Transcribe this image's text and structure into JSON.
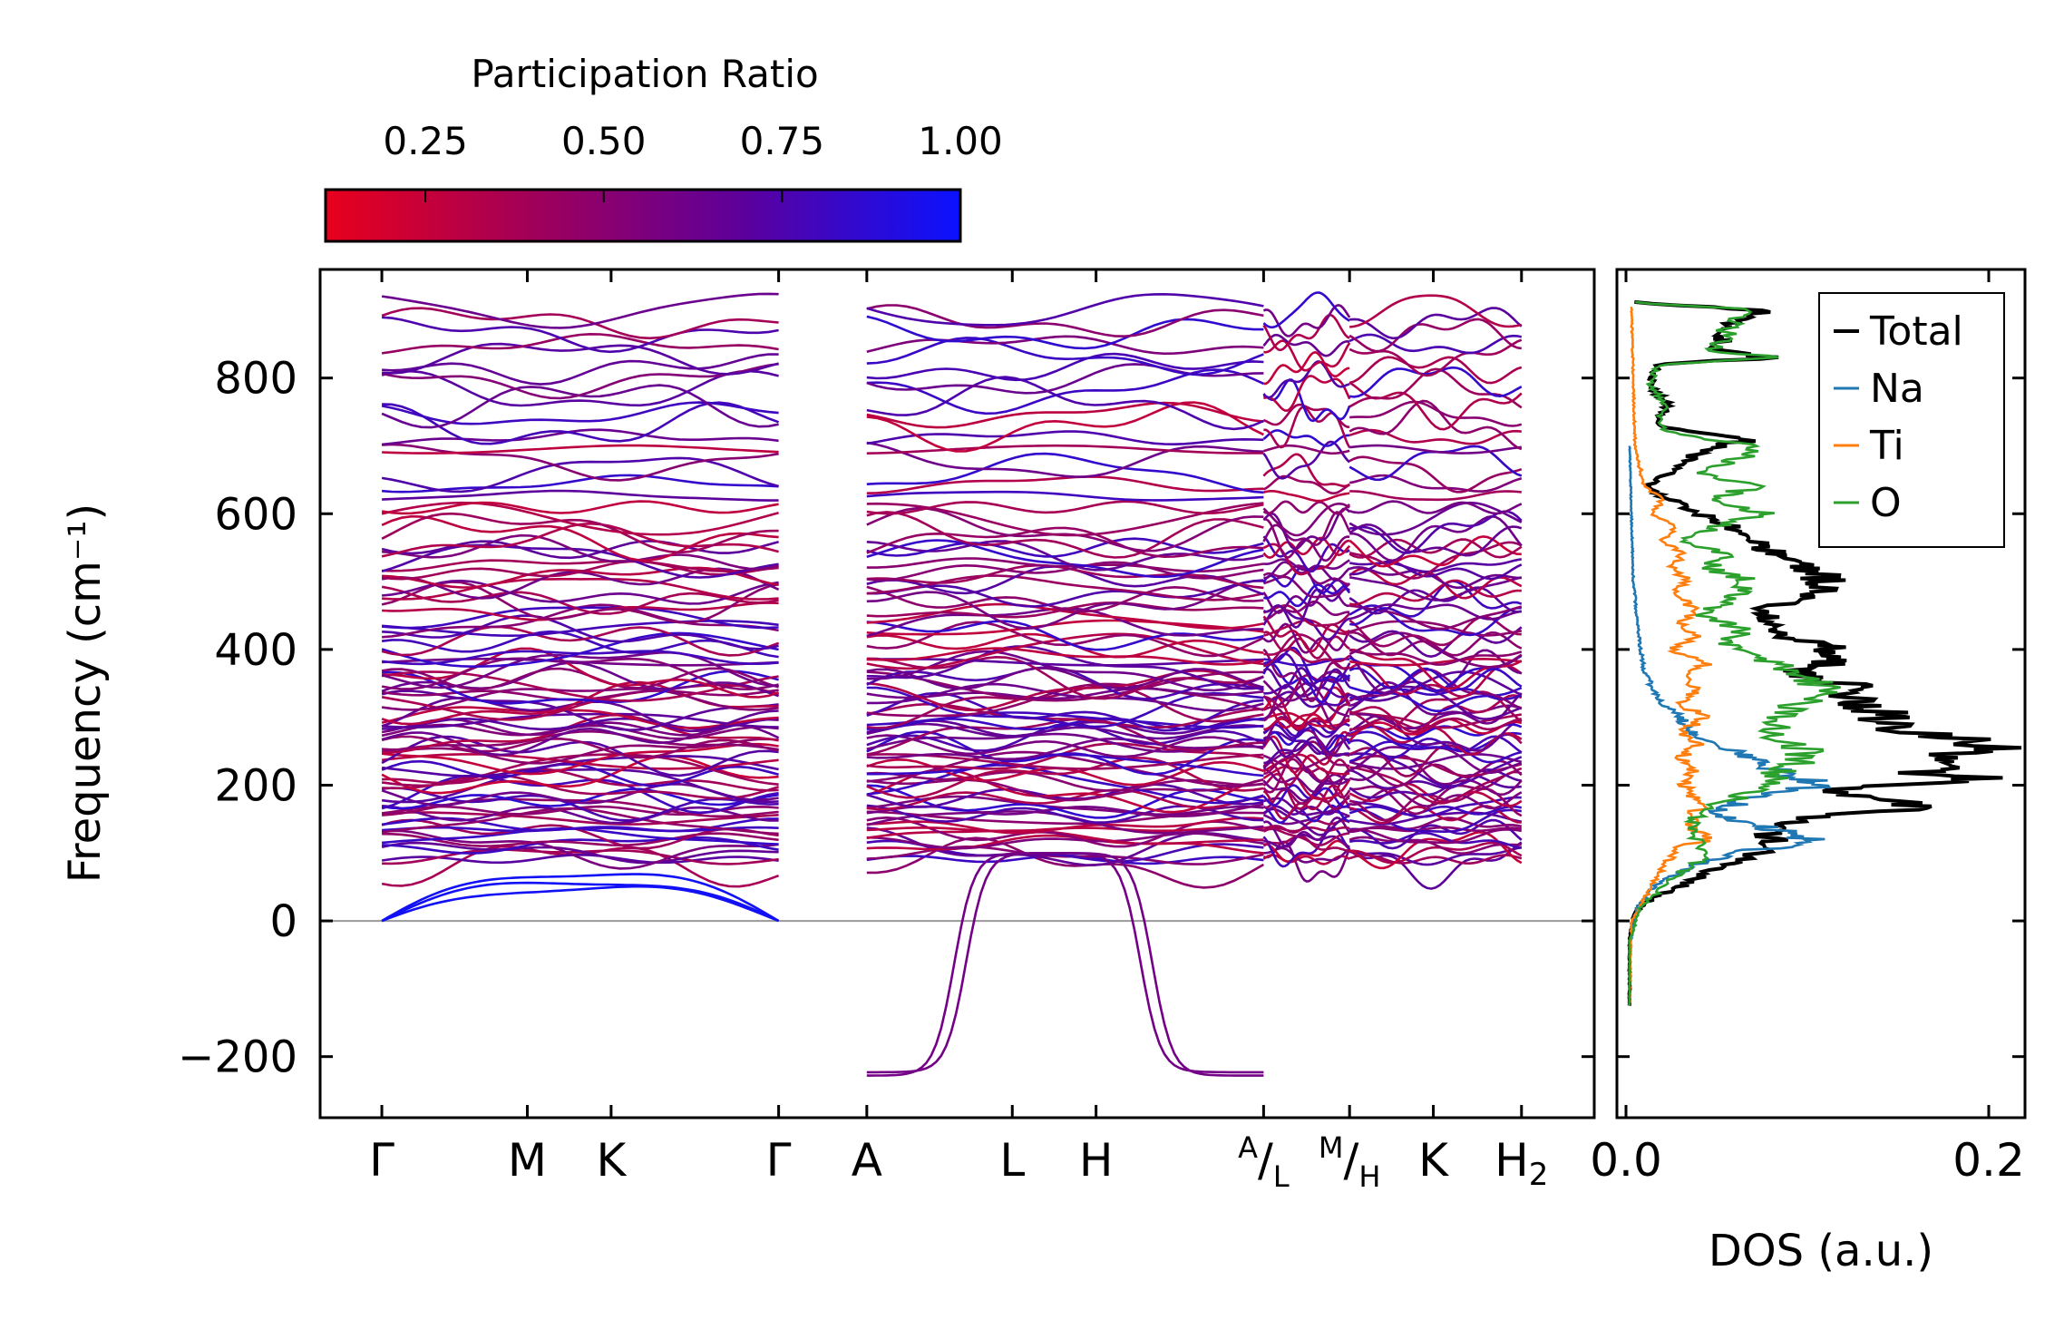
{
  "chart_data": [
    {
      "type": "line",
      "panel": "phonon band structure",
      "ylabel": "Frequency (cm⁻¹)",
      "ylim": [
        -290,
        960
      ],
      "yticks": [
        -200,
        0,
        200,
        400,
        600,
        800
      ],
      "ytick_labels": [
        "−200",
        "0",
        "200",
        "400",
        "600",
        "800"
      ],
      "segments": [
        {
          "name": "Γ-M-K-Γ",
          "kpoints": [
            0,
            0.66,
            1.04,
            1.8
          ]
        },
        {
          "name": "A-L-H-A",
          "kpoints": [
            2.2,
            2.86,
            3.24,
            4.0
          ]
        },
        {
          "name": "L-M",
          "kpoints": [
            4.0,
            4.39
          ]
        },
        {
          "name": "H-K-H2",
          "kpoints": [
            4.39,
            4.77,
            5.17
          ]
        }
      ],
      "xticks": [
        0,
        0.66,
        1.04,
        1.8,
        2.2,
        2.86,
        3.24,
        4.0,
        4.39,
        4.77,
        5.17
      ],
      "xtick_labels": [
        "Γ",
        "M",
        "K",
        "Γ",
        "A",
        "L",
        "H",
        "A/L",
        "M/H",
        "K",
        "H2"
      ],
      "xlim": [
        -0.28,
        5.5
      ],
      "band_count": 96,
      "frequency_range": [
        -228,
        900
      ],
      "imaginary_modes": {
        "segment": "A-L-H-A",
        "min_frequency": -228
      },
      "zero_line": true,
      "colorbar": {
        "label": "Participation Ratio",
        "range": [
          0.11,
          1.0
        ],
        "ticks": [
          0.25,
          0.5,
          0.75,
          1.0
        ],
        "tick_labels": [
          "0.25",
          "0.50",
          "0.75",
          "1.00"
        ],
        "colors": [
          "#e8001c",
          "#a0005a",
          "#5c009c",
          "#0a12ff"
        ]
      }
    },
    {
      "type": "line",
      "panel": "density of states",
      "xlabel": "DOS (a.u.)",
      "xlim": [
        -0.005,
        0.22
      ],
      "xticks": [
        0.0,
        0.2
      ],
      "xtick_labels": [
        "0.0",
        "0.2"
      ],
      "ylim": [
        -290,
        960
      ],
      "legend": {
        "placement": "top-right",
        "entries": [
          "Total",
          "Na",
          "Ti",
          "O"
        ]
      },
      "series": [
        {
          "name": "Total",
          "color": "#000000",
          "x": [
            0.002,
            0.002,
            0.004,
            0.013,
            0.02,
            0.033,
            0.05,
            0.06,
            0.073,
            0.078,
            0.083,
            0.08,
            0.096,
            0.15,
            0.155,
            0.12,
            0.125,
            0.21,
            0.16,
            0.2,
            0.165,
            0.145,
            0.14,
            0.12,
            0.125,
            0.1,
            0.095,
            0.12,
            0.11,
            0.085,
            0.08,
            0.075,
            0.085,
            0.1,
            0.11,
            0.105,
            0.095,
            0.08,
            0.07,
            0.06,
            0.055,
            0.05,
            0.04,
            0.03,
            0.02,
            0.012,
            0.02,
            0.03,
            0.035,
            0.04,
            0.05,
            0.06,
            0.07,
            0.035,
            0.02,
            0.018,
            0.023,
            0.013,
            0.018,
            0.05,
            0.08,
            0.05,
            0.058,
            0.075,
            0.01,
            0.005
          ],
          "y": [
            -125,
            -30,
            10,
            30,
            40,
            55,
            80,
            85,
            100,
            105,
            115,
            130,
            150,
            165,
            175,
            190,
            200,
            205,
            220,
            260,
            275,
            290,
            310,
            330,
            345,
            360,
            370,
            385,
            405,
            420,
            440,
            455,
            470,
            480,
            500,
            515,
            530,
            545,
            560,
            575,
            585,
            590,
            600,
            615,
            625,
            640,
            655,
            665,
            680,
            690,
            700,
            705,
            710,
            720,
            728,
            740,
            760,
            790,
            820,
            825,
            830,
            840,
            880,
            900,
            910,
            912
          ]
        },
        {
          "name": "Na",
          "color": "#1f77b4",
          "x": [
            0.002,
            0.002,
            0.006,
            0.015,
            0.035,
            0.06,
            0.085,
            0.1,
            0.075,
            0.045,
            0.06,
            0.065,
            0.085,
            0.11,
            0.09,
            0.075,
            0.062,
            0.045,
            0.035,
            0.03,
            0.02,
            0.015,
            0.01,
            0.008,
            0.006,
            0.004,
            0.003,
            0.002
          ],
          "y": [
            -125,
            -40,
            20,
            50,
            80,
            100,
            110,
            120,
            140,
            160,
            170,
            180,
            190,
            200,
            215,
            230,
            250,
            260,
            280,
            300,
            320,
            340,
            370,
            400,
            450,
            500,
            600,
            700
          ]
        },
        {
          "name": "Ti",
          "color": "#ff7f0e",
          "x": [
            0.002,
            0.003,
            0.012,
            0.02,
            0.03,
            0.045,
            0.035,
            0.04,
            0.032,
            0.038,
            0.03,
            0.04,
            0.03,
            0.045,
            0.028,
            0.04,
            0.03,
            0.045,
            0.025,
            0.038,
            0.03,
            0.04,
            0.025,
            0.035,
            0.025,
            0.032,
            0.02,
            0.028,
            0.015,
            0.02,
            0.01,
            0.005,
            0.004,
            0.003
          ],
          "y": [
            -125,
            0,
            40,
            80,
            110,
            120,
            140,
            170,
            200,
            220,
            240,
            260,
            280,
            300,
            320,
            340,
            360,
            380,
            400,
            420,
            440,
            460,
            480,
            500,
            520,
            540,
            560,
            580,
            600,
            620,
            640,
            700,
            800,
            905
          ]
        },
        {
          "name": "O",
          "color": "#2ca02c",
          "x": [
            0.002,
            0.002,
            0.008,
            0.025,
            0.04,
            0.045,
            0.035,
            0.04,
            0.06,
            0.075,
            0.085,
            0.095,
            0.1,
            0.08,
            0.085,
            0.1,
            0.11,
            0.095,
            0.08,
            0.07,
            0.055,
            0.06,
            0.065,
            0.04,
            0.055,
            0.07,
            0.045,
            0.055,
            0.032,
            0.05,
            0.062,
            0.08,
            0.06,
            0.045,
            0.07,
            0.04,
            0.06,
            0.075,
            0.04,
            0.02,
            0.018,
            0.022,
            0.013,
            0.018,
            0.05,
            0.08,
            0.05,
            0.058,
            0.075,
            0.01,
            0.005
          ],
          "y": [
            -125,
            -30,
            20,
            60,
            90,
            110,
            130,
            160,
            180,
            200,
            220,
            235,
            250,
            270,
            300,
            330,
            345,
            360,
            380,
            395,
            410,
            420,
            430,
            450,
            470,
            500,
            520,
            540,
            560,
            580,
            590,
            600,
            610,
            620,
            640,
            660,
            680,
            700,
            710,
            725,
            740,
            760,
            790,
            820,
            825,
            830,
            840,
            880,
            900,
            910,
            912
          ]
        }
      ]
    }
  ]
}
